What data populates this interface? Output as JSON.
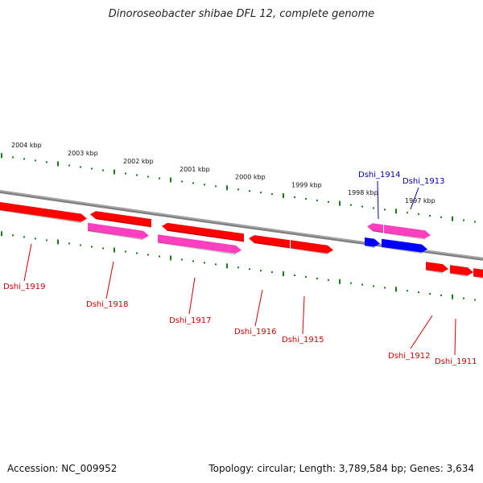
{
  "title": "Dinoroseobacter shibae DFL 12, complete genome",
  "footer": {
    "accession": "Accession: NC_009952",
    "topology": "Topology: circular; Length: 3,789,584 bp; Genes: 3,634"
  },
  "colors": {
    "gene_forward_red": "#ff0000",
    "gene_pink": "#ff3fbf",
    "gene_blue": "#0000ff",
    "backbone": "#808080",
    "ticks": "#1a7a1a",
    "label_red": "#cc0000",
    "label_blue": "#0000aa"
  },
  "scale_labels": [
    "2004 kbp",
    "2003 kbp",
    "2002 kbp",
    "2001 kbp",
    "2000 kbp",
    "1999 kbp",
    "1998 kbp",
    "1997 kbp"
  ],
  "gene_labels": [
    {
      "text": "Dshi_1919",
      "color": "red"
    },
    {
      "text": "Dshi_1918",
      "color": "red"
    },
    {
      "text": "Dshi_1917",
      "color": "red"
    },
    {
      "text": "Dshi_1916",
      "color": "red"
    },
    {
      "text": "Dshi_1915",
      "color": "red"
    },
    {
      "text": "Dshi_1914",
      "color": "blue"
    },
    {
      "text": "Dshi_1913",
      "color": "blue"
    },
    {
      "text": "Dshi_1912",
      "color": "red"
    },
    {
      "text": "Dshi_1911",
      "color": "red"
    }
  ]
}
